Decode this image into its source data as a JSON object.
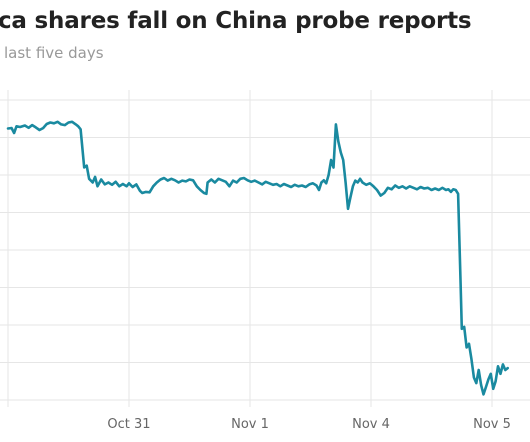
{
  "title": "ca shares fall on China probe reports",
  "subtitle": "last five days",
  "colors": {
    "line": "#1a8aa0",
    "grid": "#e6e6e6",
    "text": "#222222",
    "subtitle": "#999999",
    "tick": "#666666"
  },
  "chart_data": {
    "type": "line",
    "title": "ca shares fall on China probe reports",
    "subtitle": "last five days",
    "xlabel": "",
    "ylabel": "",
    "grid": "both",
    "x_ticks": [
      {
        "label": "Oct 31",
        "t": 1.0
      },
      {
        "label": "Nov 1",
        "t": 2.0
      },
      {
        "label": "Nov 4",
        "t": 3.0
      },
      {
        "label": "Nov 5",
        "t": 4.0
      }
    ],
    "y_grid_count": 8,
    "ylim": [
      0,
      8
    ],
    "xlim": [
      0.0,
      4.25
    ],
    "series": [
      {
        "values": [
          [
            0.0,
            7.24
          ],
          [
            0.03,
            7.25
          ],
          [
            0.05,
            7.12
          ],
          [
            0.07,
            7.3
          ],
          [
            0.1,
            7.28
          ],
          [
            0.14,
            7.32
          ],
          [
            0.17,
            7.26
          ],
          [
            0.2,
            7.33
          ],
          [
            0.23,
            7.27
          ],
          [
            0.26,
            7.2
          ],
          [
            0.29,
            7.25
          ],
          [
            0.32,
            7.36
          ],
          [
            0.35,
            7.4
          ],
          [
            0.38,
            7.38
          ],
          [
            0.41,
            7.42
          ],
          [
            0.44,
            7.35
          ],
          [
            0.47,
            7.33
          ],
          [
            0.5,
            7.4
          ],
          [
            0.53,
            7.42
          ],
          [
            0.56,
            7.35
          ],
          [
            0.58,
            7.3
          ],
          [
            0.6,
            7.22
          ],
          [
            0.63,
            6.2
          ],
          [
            0.65,
            6.25
          ],
          [
            0.67,
            5.9
          ],
          [
            0.7,
            5.8
          ],
          [
            0.72,
            5.95
          ],
          [
            0.74,
            5.7
          ],
          [
            0.77,
            5.88
          ],
          [
            0.8,
            5.75
          ],
          [
            0.83,
            5.8
          ],
          [
            0.86,
            5.74
          ],
          [
            0.89,
            5.82
          ],
          [
            0.92,
            5.7
          ],
          [
            0.95,
            5.76
          ],
          [
            0.98,
            5.7
          ],
          [
            1.0,
            5.78
          ],
          [
            1.03,
            5.68
          ],
          [
            1.06,
            5.75
          ],
          [
            1.09,
            5.58
          ],
          [
            1.11,
            5.52
          ],
          [
            1.14,
            5.55
          ],
          [
            1.17,
            5.54
          ],
          [
            1.2,
            5.7
          ],
          [
            1.23,
            5.8
          ],
          [
            1.26,
            5.88
          ],
          [
            1.29,
            5.92
          ],
          [
            1.32,
            5.85
          ],
          [
            1.35,
            5.9
          ],
          [
            1.38,
            5.86
          ],
          [
            1.41,
            5.8
          ],
          [
            1.44,
            5.85
          ],
          [
            1.47,
            5.83
          ],
          [
            1.5,
            5.88
          ],
          [
            1.53,
            5.86
          ],
          [
            1.56,
            5.7
          ],
          [
            1.59,
            5.6
          ],
          [
            1.62,
            5.52
          ],
          [
            1.64,
            5.5
          ],
          [
            1.65,
            5.8
          ],
          [
            1.68,
            5.88
          ],
          [
            1.71,
            5.8
          ],
          [
            1.74,
            5.9
          ],
          [
            1.77,
            5.86
          ],
          [
            1.8,
            5.82
          ],
          [
            1.83,
            5.7
          ],
          [
            1.86,
            5.85
          ],
          [
            1.89,
            5.8
          ],
          [
            1.92,
            5.9
          ],
          [
            1.95,
            5.92
          ],
          [
            1.98,
            5.86
          ],
          [
            2.01,
            5.82
          ],
          [
            2.04,
            5.85
          ],
          [
            2.07,
            5.8
          ],
          [
            2.1,
            5.75
          ],
          [
            2.13,
            5.82
          ],
          [
            2.16,
            5.78
          ],
          [
            2.19,
            5.74
          ],
          [
            2.22,
            5.76
          ],
          [
            2.25,
            5.7
          ],
          [
            2.28,
            5.76
          ],
          [
            2.31,
            5.72
          ],
          [
            2.34,
            5.68
          ],
          [
            2.37,
            5.74
          ],
          [
            2.4,
            5.7
          ],
          [
            2.43,
            5.72
          ],
          [
            2.46,
            5.68
          ],
          [
            2.49,
            5.75
          ],
          [
            2.52,
            5.78
          ],
          [
            2.55,
            5.72
          ],
          [
            2.57,
            5.6
          ],
          [
            2.59,
            5.8
          ],
          [
            2.61,
            5.86
          ],
          [
            2.63,
            5.78
          ],
          [
            2.65,
            6.0
          ],
          [
            2.67,
            6.4
          ],
          [
            2.69,
            6.2
          ],
          [
            2.71,
            7.35
          ],
          [
            2.73,
            6.9
          ],
          [
            2.75,
            6.6
          ],
          [
            2.77,
            6.4
          ],
          [
            2.79,
            5.8
          ],
          [
            2.81,
            5.1
          ],
          [
            2.83,
            5.4
          ],
          [
            2.85,
            5.7
          ],
          [
            2.87,
            5.85
          ],
          [
            2.89,
            5.8
          ],
          [
            2.91,
            5.9
          ],
          [
            2.93,
            5.8
          ],
          [
            2.96,
            5.74
          ],
          [
            2.99,
            5.78
          ],
          [
            3.02,
            5.7
          ],
          [
            3.05,
            5.6
          ],
          [
            3.08,
            5.45
          ],
          [
            3.11,
            5.52
          ],
          [
            3.14,
            5.66
          ],
          [
            3.17,
            5.62
          ],
          [
            3.2,
            5.72
          ],
          [
            3.23,
            5.66
          ],
          [
            3.26,
            5.7
          ],
          [
            3.29,
            5.64
          ],
          [
            3.32,
            5.7
          ],
          [
            3.35,
            5.66
          ],
          [
            3.38,
            5.62
          ],
          [
            3.41,
            5.68
          ],
          [
            3.44,
            5.64
          ],
          [
            3.47,
            5.66
          ],
          [
            3.5,
            5.6
          ],
          [
            3.53,
            5.64
          ],
          [
            3.56,
            5.6
          ],
          [
            3.59,
            5.66
          ],
          [
            3.62,
            5.6
          ],
          [
            3.64,
            5.62
          ],
          [
            3.66,
            5.55
          ],
          [
            3.68,
            5.62
          ],
          [
            3.7,
            5.6
          ],
          [
            3.72,
            5.5
          ],
          [
            3.74,
            3.2
          ],
          [
            3.75,
            1.9
          ],
          [
            3.77,
            1.95
          ],
          [
            3.79,
            1.4
          ],
          [
            3.81,
            1.5
          ],
          [
            3.83,
            1.1
          ],
          [
            3.85,
            0.6
          ],
          [
            3.87,
            0.45
          ],
          [
            3.89,
            0.8
          ],
          [
            3.91,
            0.4
          ],
          [
            3.93,
            0.15
          ],
          [
            3.95,
            0.35
          ],
          [
            3.97,
            0.55
          ],
          [
            3.99,
            0.7
          ],
          [
            4.01,
            0.3
          ],
          [
            4.03,
            0.5
          ],
          [
            4.05,
            0.9
          ],
          [
            4.07,
            0.7
          ],
          [
            4.09,
            0.95
          ],
          [
            4.11,
            0.8
          ],
          [
            4.13,
            0.85
          ]
        ]
      }
    ]
  }
}
